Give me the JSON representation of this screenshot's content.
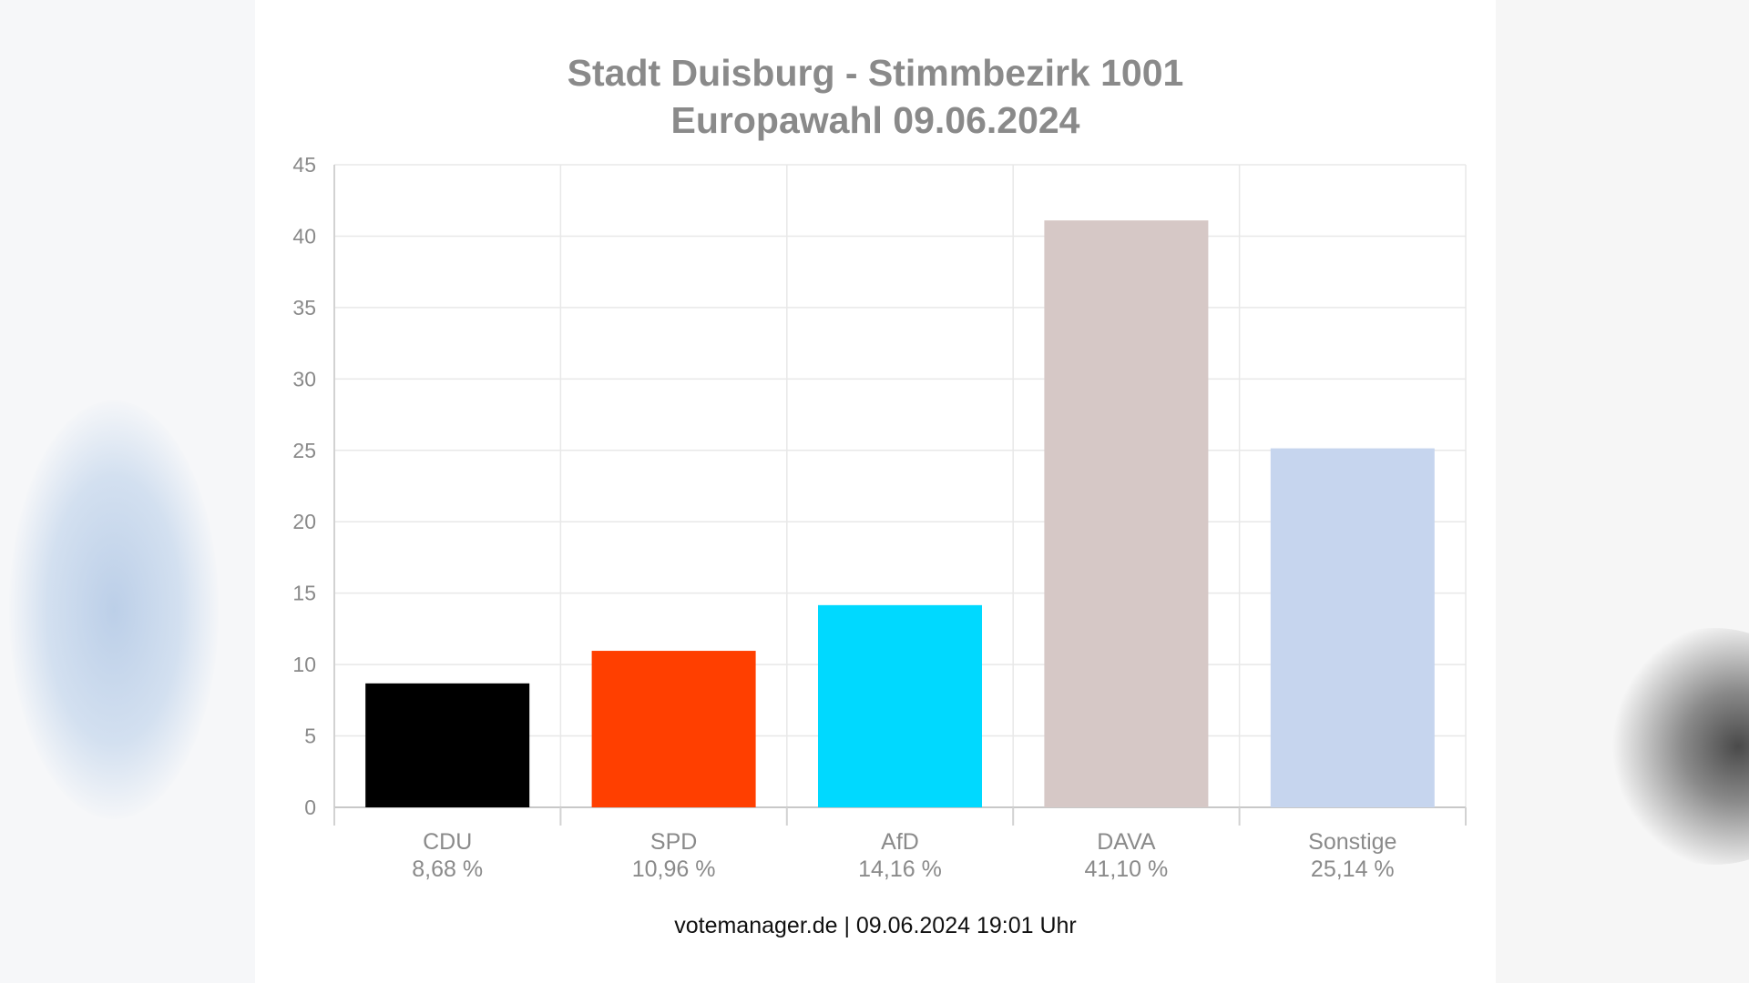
{
  "chart_data": {
    "type": "bar",
    "title": "Stadt Duisburg - Stimmbezirk 1001",
    "subtitle": "Europawahl 09.06.2024",
    "categories": [
      "CDU",
      "SPD",
      "AfD",
      "DAVA",
      "Sonstige"
    ],
    "value_labels": [
      "8,68 %",
      "10,96 %",
      "14,16 %",
      "41,10 %",
      "25,14 %"
    ],
    "values": [
      8.68,
      10.96,
      14.16,
      41.1,
      25.14
    ],
    "colors": [
      "#000000",
      "#ff3f00",
      "#00d9ff",
      "#d6c8c6",
      "#c6d5ee"
    ],
    "ylim": [
      0,
      45
    ],
    "yticks": [
      0,
      5,
      10,
      15,
      20,
      25,
      30,
      35,
      40,
      45
    ],
    "xlabel": "",
    "ylabel": "",
    "grid": true,
    "legend": "none"
  },
  "footer": "votemanager.de | 09.06.2024 19:01 Uhr"
}
